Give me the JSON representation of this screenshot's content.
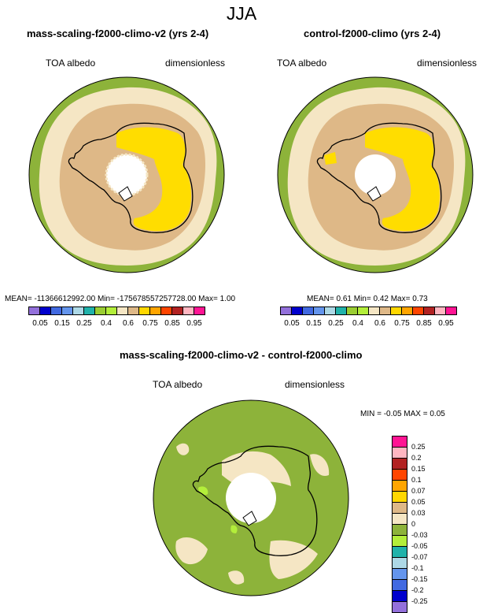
{
  "season": "JJA",
  "panels": [
    {
      "title": "mass-scaling-f2000-climo-v2 (yrs 2-4)",
      "variable": "TOA albedo",
      "units": "dimensionless",
      "stats": "MEAN= -11366612992.00   Min= -175678557257728.00   Max=   1.00"
    },
    {
      "title": "control-f2000-climo (yrs 2-4)",
      "variable": "TOA albedo",
      "units": "dimensionless",
      "stats": "MEAN=   0.61   Min=   0.42   Max=   0.73"
    }
  ],
  "difference": {
    "title": "mass-scaling-f2000-climo-v2 - control-f2000-climo",
    "variable": "TOA albedo",
    "units": "dimensionless",
    "stats": "MIN =  -0.05 MAX =   0.05"
  },
  "colorbar_main": {
    "colors": [
      "#9370db",
      "#0000cd",
      "#4169e1",
      "#6495ed",
      "#add8e6",
      "#20b2aa",
      "#9acd32",
      "#b3ee3a",
      "#f5e6c4",
      "#deb887",
      "#ffd700",
      "#ffa500",
      "#ff4500",
      "#b22222",
      "#ffb6c1",
      "#ff1493"
    ],
    "labels": [
      "0.05",
      "0.15",
      "0.25",
      "0.4",
      "0.6",
      "0.75",
      "0.85",
      "0.95"
    ]
  },
  "colorbar_diff": {
    "colors": [
      "#ff1493",
      "#ffb6c1",
      "#b22222",
      "#ff4500",
      "#ffa500",
      "#ffd700",
      "#deb887",
      "#f5e6c4",
      "#8db33a",
      "#b3ee3a",
      "#20b2aa",
      "#add8e6",
      "#6495ed",
      "#4169e1",
      "#0000cd",
      "#9370db"
    ],
    "labels": [
      "0.25",
      "0.2",
      "0.15",
      "0.1",
      "0.07",
      "0.05",
      "0.03",
      "0",
      "-0.03",
      "-0.05",
      "-0.07",
      "-0.1",
      "-0.15",
      "-0.2",
      "-0.25"
    ]
  },
  "map_colors": {
    "green": "#8db33a",
    "light_green": "#b3ee3a",
    "tan": "#deb887",
    "cream": "#f5e6c4",
    "yellow": "#ffdd00",
    "white": "#ffffff"
  }
}
